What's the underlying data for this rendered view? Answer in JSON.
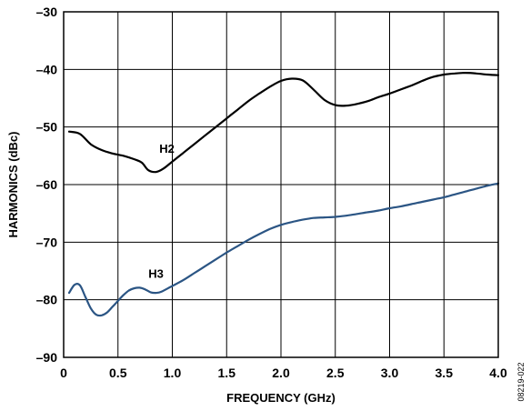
{
  "chart_data": {
    "type": "line",
    "title": "",
    "xlabel": "FREQUENCY (GHz)",
    "ylabel": "HARMONICS (dBc)",
    "xlim": [
      0,
      4.0
    ],
    "ylim": [
      -90,
      -30
    ],
    "x_ticks": [
      0,
      0.5,
      1.0,
      1.5,
      2.0,
      2.5,
      3.0,
      3.5,
      4.0
    ],
    "x_tick_labels": [
      "0",
      "0.5",
      "1.0",
      "1.5",
      "2.0",
      "2.5",
      "3.0",
      "3.5",
      "4.0"
    ],
    "y_ticks": [
      -90,
      -80,
      -70,
      -60,
      -50,
      -40,
      -30
    ],
    "y_tick_labels": [
      "–90",
      "–80",
      "–70",
      "–60",
      "–50",
      "–40",
      "–30"
    ],
    "grid": true,
    "legend": "none",
    "series": [
      {
        "name": "H2",
        "color": "#000000",
        "x": [
          0.05,
          0.15,
          0.25,
          0.35,
          0.45,
          0.55,
          0.65,
          0.72,
          0.78,
          0.85,
          0.92,
          1.0,
          1.1,
          1.2,
          1.3,
          1.4,
          1.5,
          1.6,
          1.7,
          1.8,
          1.9,
          2.0,
          2.1,
          2.2,
          2.3,
          2.4,
          2.5,
          2.6,
          2.7,
          2.8,
          2.9,
          3.0,
          3.1,
          3.2,
          3.3,
          3.4,
          3.5,
          3.6,
          3.7,
          3.8,
          3.9,
          4.0
        ],
        "y": [
          -50.8,
          -51.2,
          -53.0,
          -54.0,
          -54.6,
          -55.0,
          -55.6,
          -56.2,
          -57.5,
          -57.8,
          -57.2,
          -56.0,
          -54.5,
          -53.0,
          -51.5,
          -50.0,
          -48.5,
          -47.0,
          -45.5,
          -44.2,
          -43.0,
          -42.0,
          -41.6,
          -41.9,
          -43.5,
          -45.3,
          -46.2,
          -46.3,
          -46.0,
          -45.5,
          -44.8,
          -44.2,
          -43.5,
          -42.8,
          -42.0,
          -41.3,
          -40.9,
          -40.7,
          -40.6,
          -40.7,
          -40.9,
          -41.0
        ]
      },
      {
        "name": "H3",
        "color": "#2b5584",
        "x": [
          0.05,
          0.1,
          0.15,
          0.2,
          0.25,
          0.3,
          0.35,
          0.4,
          0.45,
          0.5,
          0.55,
          0.6,
          0.65,
          0.7,
          0.75,
          0.8,
          0.85,
          0.9,
          1.0,
          1.1,
          1.2,
          1.3,
          1.4,
          1.5,
          1.6,
          1.7,
          1.8,
          1.9,
          2.0,
          2.1,
          2.2,
          2.3,
          2.4,
          2.5,
          2.6,
          2.7,
          2.8,
          2.9,
          3.0,
          3.1,
          3.2,
          3.3,
          3.4,
          3.5,
          3.6,
          3.7,
          3.8,
          3.9,
          4.0
        ],
        "y": [
          -78.8,
          -77.4,
          -77.5,
          -79.5,
          -81.5,
          -82.6,
          -82.7,
          -82.2,
          -81.2,
          -80.2,
          -79.2,
          -78.4,
          -78.0,
          -77.9,
          -78.2,
          -78.7,
          -78.8,
          -78.6,
          -77.6,
          -76.6,
          -75.4,
          -74.2,
          -73.0,
          -71.8,
          -70.7,
          -69.6,
          -68.6,
          -67.7,
          -67.0,
          -66.5,
          -66.1,
          -65.8,
          -65.7,
          -65.6,
          -65.4,
          -65.1,
          -64.8,
          -64.5,
          -64.1,
          -63.8,
          -63.4,
          -63.0,
          -62.6,
          -62.2,
          -61.7,
          -61.2,
          -60.7,
          -60.2,
          -59.8
        ]
      }
    ],
    "annotations": [
      {
        "text": "H2",
        "x": 0.95,
        "y": -54.5
      },
      {
        "text": "H3",
        "x": 0.85,
        "y": -76.2
      }
    ],
    "figure_id": "08219-022"
  }
}
